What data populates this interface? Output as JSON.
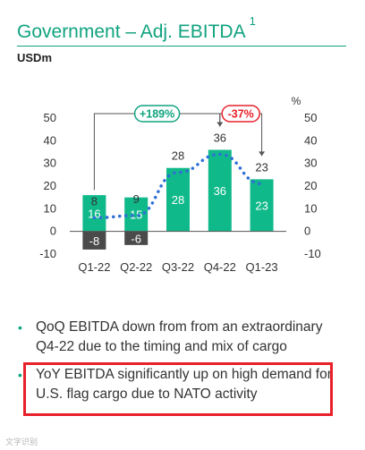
{
  "header": {
    "title": "Government – Adj. EBITDA",
    "title_footnote": "1",
    "unit": "USDm"
  },
  "chart_data": {
    "type": "bar",
    "categories": [
      "Q1-22",
      "Q2-22",
      "Q3-22",
      "Q4-22",
      "Q1-23"
    ],
    "series": [
      {
        "values": [
          16,
          15,
          28,
          36,
          23
        ],
        "labels": [
          "16",
          "15",
          "28",
          "36",
          "23"
        ],
        "color": "#10b98a"
      },
      {
        "values": [
          -8,
          -6,
          0,
          0,
          0
        ],
        "labels": [
          "-8",
          "-6",
          "",
          "",
          ""
        ],
        "color": "#4a4a4a"
      }
    ],
    "line": {
      "values": [
        8,
        9,
        28,
        36,
        23
      ],
      "labels": [
        "8",
        "9",
        "28",
        "36",
        "23"
      ],
      "style": "dotted",
      "color": "#2f6fd6"
    },
    "left_axis": {
      "min": -10,
      "max": 50,
      "ticks": [
        "50",
        "40",
        "30",
        "20",
        "10",
        "0",
        "-10"
      ]
    },
    "right_axis": {
      "unit": "%",
      "ticks": [
        "50",
        "40",
        "30",
        "20",
        "10",
        "0",
        "-10"
      ]
    },
    "annotations": [
      {
        "text": "+189%",
        "from": "Q1-22",
        "to": "Q4-22",
        "color": "#10a37f"
      },
      {
        "text": "-37%",
        "from": "Q4-22",
        "to": "Q1-23",
        "color": "#e8202a"
      }
    ],
    "grid": false
  },
  "bullets": [
    "QoQ EBITDA down from from an extraordinary Q4-22 due to the timing and mix of cargo",
    "YoY EBITDA significantly up on high demand for U.S. flag cargo due to NATO activity"
  ],
  "watermark": "文字识别"
}
